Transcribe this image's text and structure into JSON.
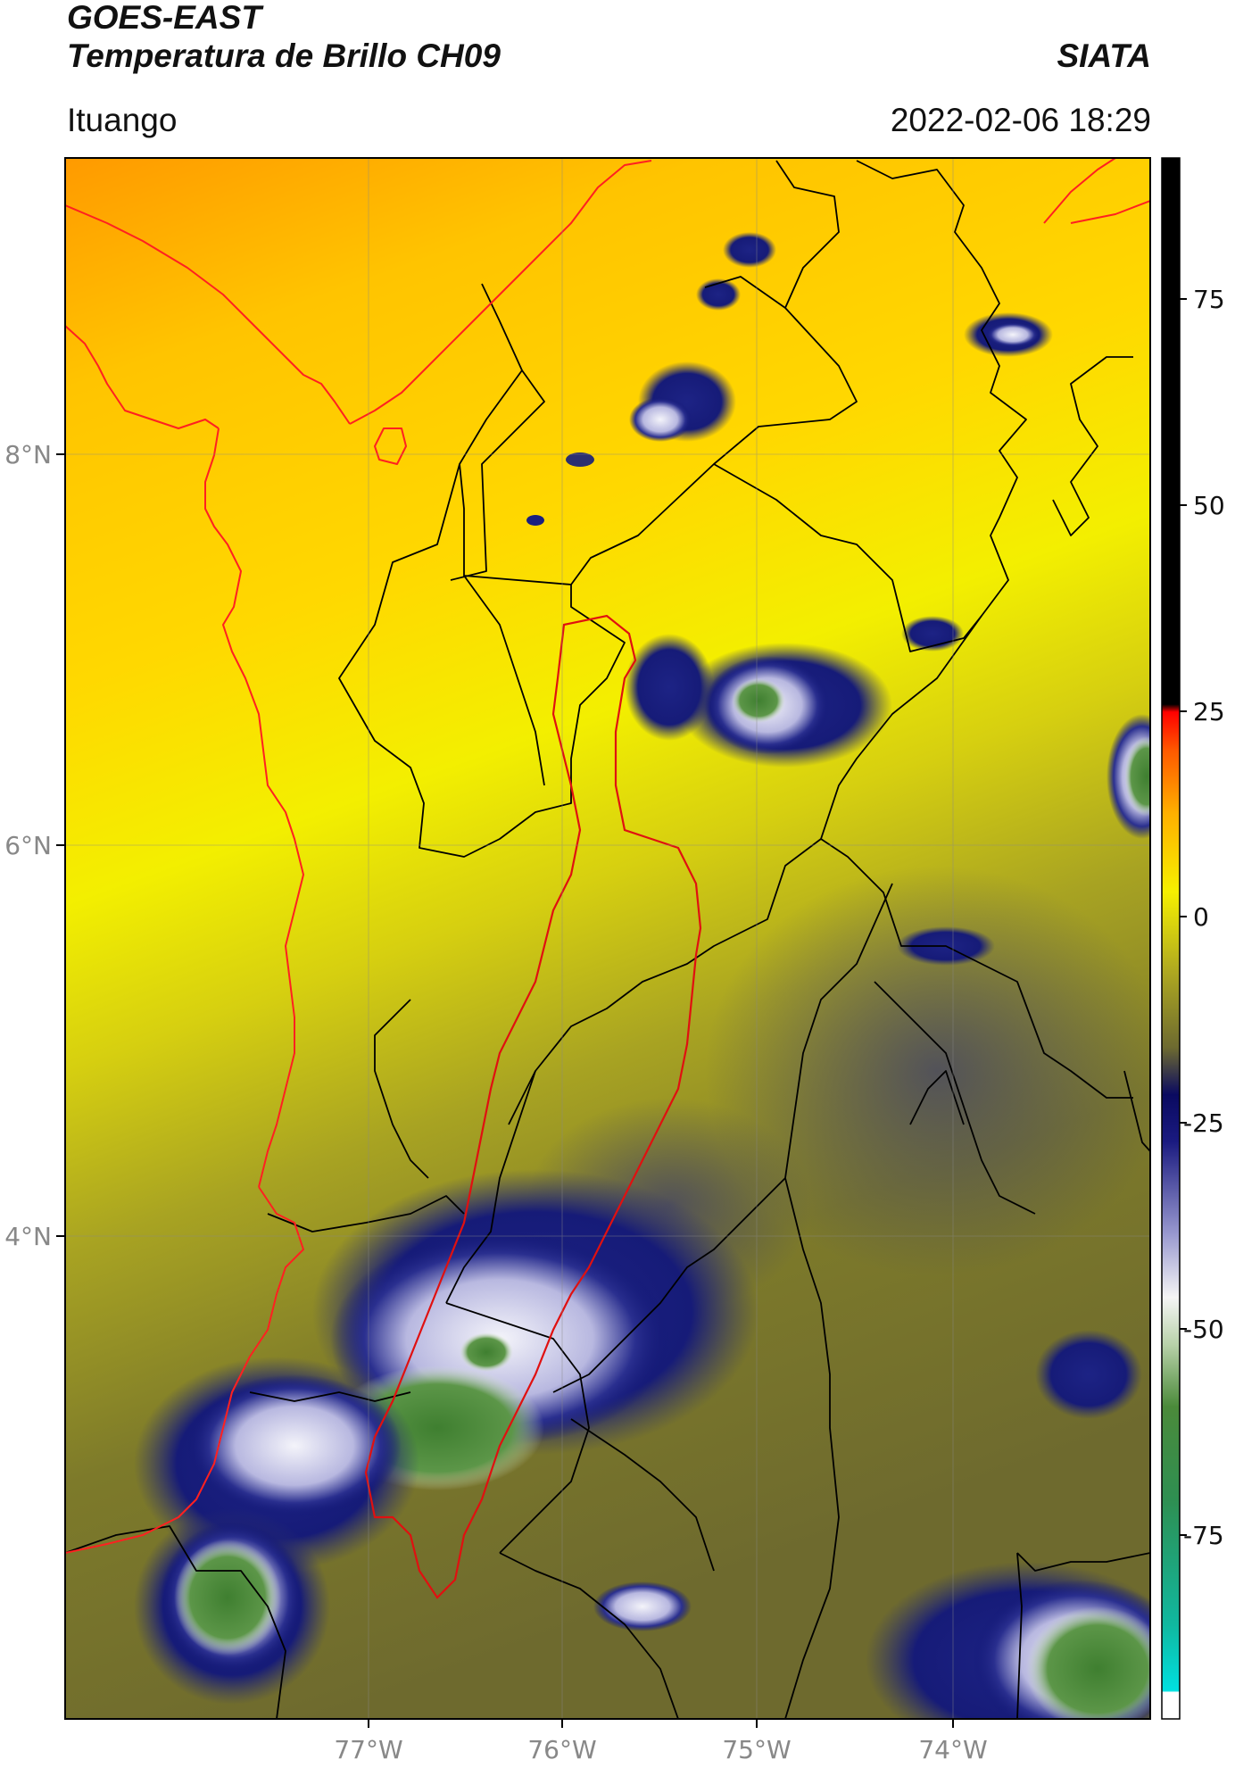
{
  "header": {
    "satellite": "GOES-EAST",
    "product": "Temperatura de Brillo CH09",
    "organization": "SIATA",
    "region": "Ituango",
    "datetime": "2022-02-06 18:29"
  },
  "map": {
    "lat_labels": [
      "8°N",
      "6°N",
      "4°N"
    ],
    "lon_labels": [
      "77°W",
      "76°W",
      "75°W",
      "74°W"
    ],
    "colors": {
      "warm": "#ffc200",
      "hot": "#ff9500",
      "yellow": "#f2ef00",
      "olive": "#7d7a2a",
      "navy": "#111675",
      "white": "#f2f2f8",
      "green": "#4f8c3c",
      "boundary": "#000000",
      "coast": "#ff2020",
      "basin": "#e01010"
    }
  },
  "colorbar": {
    "tick_labels": [
      "75",
      "50",
      "25",
      "0",
      "-25",
      "-50",
      "-75"
    ]
  }
}
